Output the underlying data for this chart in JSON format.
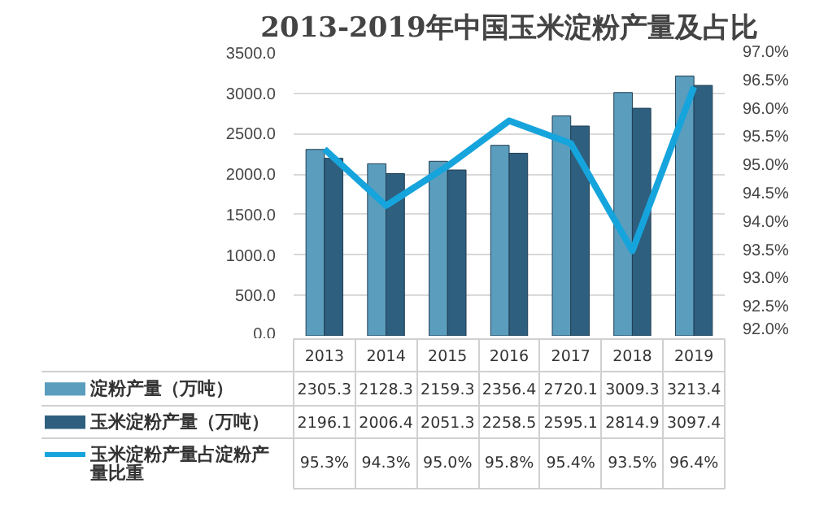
{
  "chart_data": {
    "type": "bar",
    "title": "2013-2019年中国玉米淀粉产量及占比",
    "categories": [
      "2013",
      "2014",
      "2015",
      "2016",
      "2017",
      "2018",
      "2019"
    ],
    "series": [
      {
        "name": "淀粉产量（万吨）",
        "color": "#5b9dbd",
        "values": [
          2305.3,
          2128.3,
          2159.3,
          2356.4,
          2720.1,
          3009.3,
          3213.4
        ],
        "value_labels": [
          "2305.3",
          "2128.3",
          "2159.3",
          "2356.4",
          "2720.1",
          "3009.3",
          "3213.4"
        ]
      },
      {
        "name": "玉米淀粉产量（万吨）",
        "color": "#2f5f7e",
        "values": [
          2196.1,
          2006.4,
          2051.3,
          2258.5,
          2595.1,
          2814.9,
          3097.4
        ],
        "value_labels": [
          "2196.1",
          "2006.4",
          "2051.3",
          "2258.5",
          "2595.1",
          "2814.9",
          "3097.4"
        ]
      },
      {
        "name": "玉米淀粉产量占淀粉产量比重",
        "type": "line",
        "axis": "y2",
        "color": "#16a4dc",
        "values": [
          95.3,
          94.3,
          95.0,
          95.8,
          95.4,
          93.5,
          96.4
        ],
        "value_labels": [
          "95.3%",
          "94.3%",
          "95.0%",
          "95.8%",
          "95.4%",
          "93.5%",
          "96.4%"
        ]
      }
    ],
    "ylim": [
      0,
      3500
    ],
    "yticks": [
      {
        "value": 0,
        "label": "0.0"
      },
      {
        "value": 500,
        "label": "500.0"
      },
      {
        "value": 1000,
        "label": "1000.0"
      },
      {
        "value": 1500,
        "label": "1500.0"
      },
      {
        "value": 2000,
        "label": "2000.0"
      },
      {
        "value": 2500,
        "label": "2500.0"
      },
      {
        "value": 3000,
        "label": "3000.0"
      },
      {
        "value": 3500,
        "label": "3500.0"
      }
    ],
    "y2lim": [
      92,
      97
    ],
    "y2ticks": [
      {
        "value": 92,
        "label": "92.0%"
      },
      {
        "value": 92.5,
        "label": "92.5%"
      },
      {
        "value": 93,
        "label": "93.0%"
      },
      {
        "value": 93.5,
        "label": "93.5%"
      },
      {
        "value": 94,
        "label": "94.0%"
      },
      {
        "value": 94.5,
        "label": "94.5%"
      },
      {
        "value": 95,
        "label": "95.0%"
      },
      {
        "value": 95.5,
        "label": "95.5%"
      },
      {
        "value": 96,
        "label": "96.0%"
      },
      {
        "value": 96.5,
        "label": "96.5%"
      },
      {
        "value": 97,
        "label": "97.0%"
      }
    ],
    "grid": "y",
    "legend": "bottom"
  }
}
